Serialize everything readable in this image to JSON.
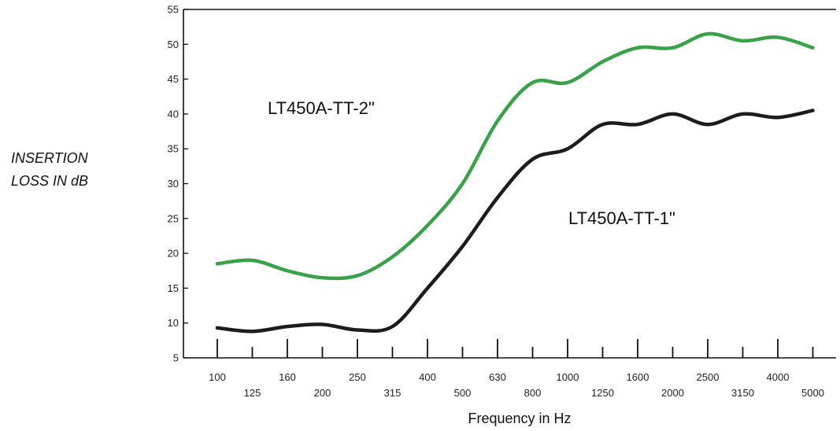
{
  "chart_data": {
    "type": "line",
    "title": "",
    "ylabel": [
      "INSERTION",
      "LOSS IN dB"
    ],
    "xlabel": "Frequency in Hz",
    "ylim": [
      5,
      55
    ],
    "yticks": [
      5,
      10,
      15,
      20,
      25,
      30,
      35,
      40,
      45,
      50,
      55
    ],
    "x_scale": "log",
    "grid": false,
    "categories": [
      "100",
      "125",
      "160",
      "200",
      "250",
      "315",
      "400",
      "500",
      "630",
      "800",
      "1000",
      "1250",
      "1600",
      "2000",
      "2500",
      "3150",
      "4000",
      "5000"
    ],
    "series": [
      {
        "name": "LT450A-TT-2\"",
        "color": "#3aa04a",
        "values": [
          18.5,
          19,
          17.5,
          16.5,
          16.8,
          19.5,
          24,
          30,
          39,
          44.5,
          44.5,
          47.5,
          49.5,
          49.5,
          51.5,
          50.5,
          51,
          49.5
        ]
      },
      {
        "name": "LT450A-TT-1\"",
        "color": "#1c1c1c",
        "values": [
          9.3,
          8.8,
          9.5,
          9.8,
          9.0,
          9.5,
          15,
          21,
          28,
          33.5,
          35,
          38.5,
          38.5,
          40,
          38.5,
          40,
          39.5,
          40.5
        ]
      }
    ]
  }
}
